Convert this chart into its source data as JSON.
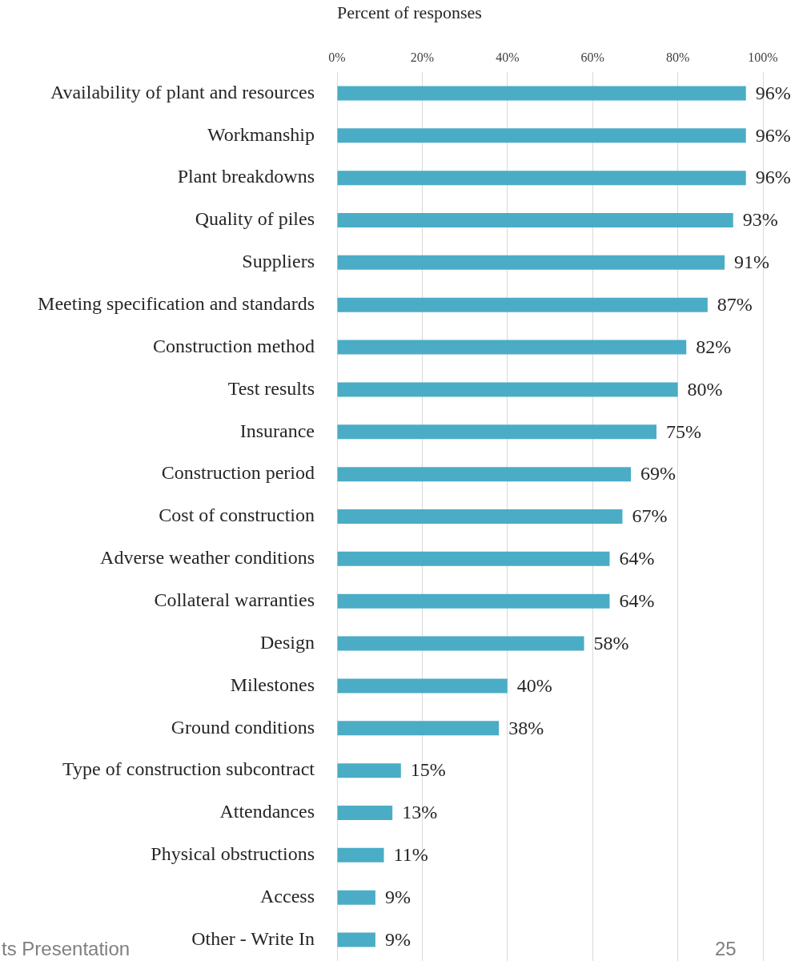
{
  "chart_data": {
    "type": "bar",
    "orientation": "horizontal",
    "xlabel": "Percent of responses",
    "categories": [
      "Availability of plant and resources",
      "Workmanship",
      "Plant breakdowns",
      "Quality of piles",
      "Suppliers",
      "Meeting specification and standards",
      "Construction method",
      "Test results",
      "Insurance",
      "Construction period",
      "Cost of construction",
      "Adverse weather conditions",
      "Collateral warranties",
      "Design",
      "Milestones",
      "Ground conditions",
      "Type of construction subcontract",
      "Attendances",
      "Physical obstructions",
      "Access",
      "Other - Write In"
    ],
    "values": [
      96,
      96,
      96,
      93,
      91,
      87,
      82,
      80,
      75,
      69,
      67,
      64,
      64,
      58,
      40,
      38,
      15,
      13,
      11,
      9,
      9
    ],
    "value_labels": [
      "96%",
      "96%",
      "96%",
      "93%",
      "91%",
      "87%",
      "82%",
      "80%",
      "75%",
      "69%",
      "67%",
      "64%",
      "64%",
      "58%",
      "40%",
      "38%",
      "15%",
      "13%",
      "11%",
      "9%",
      "9%"
    ],
    "color": "#4bacc6",
    "xlim": [
      0,
      100
    ],
    "xticks": [
      {
        "value": 0,
        "label": "0%"
      },
      {
        "value": 20,
        "label": "20%"
      },
      {
        "value": 40,
        "label": "40%"
      },
      {
        "value": 60,
        "label": "60%"
      },
      {
        "value": 80,
        "label": "80%"
      },
      {
        "value": 100,
        "label": "100%"
      }
    ],
    "grid": "x",
    "annotations": [
      "ts Presentation",
      "25"
    ]
  }
}
